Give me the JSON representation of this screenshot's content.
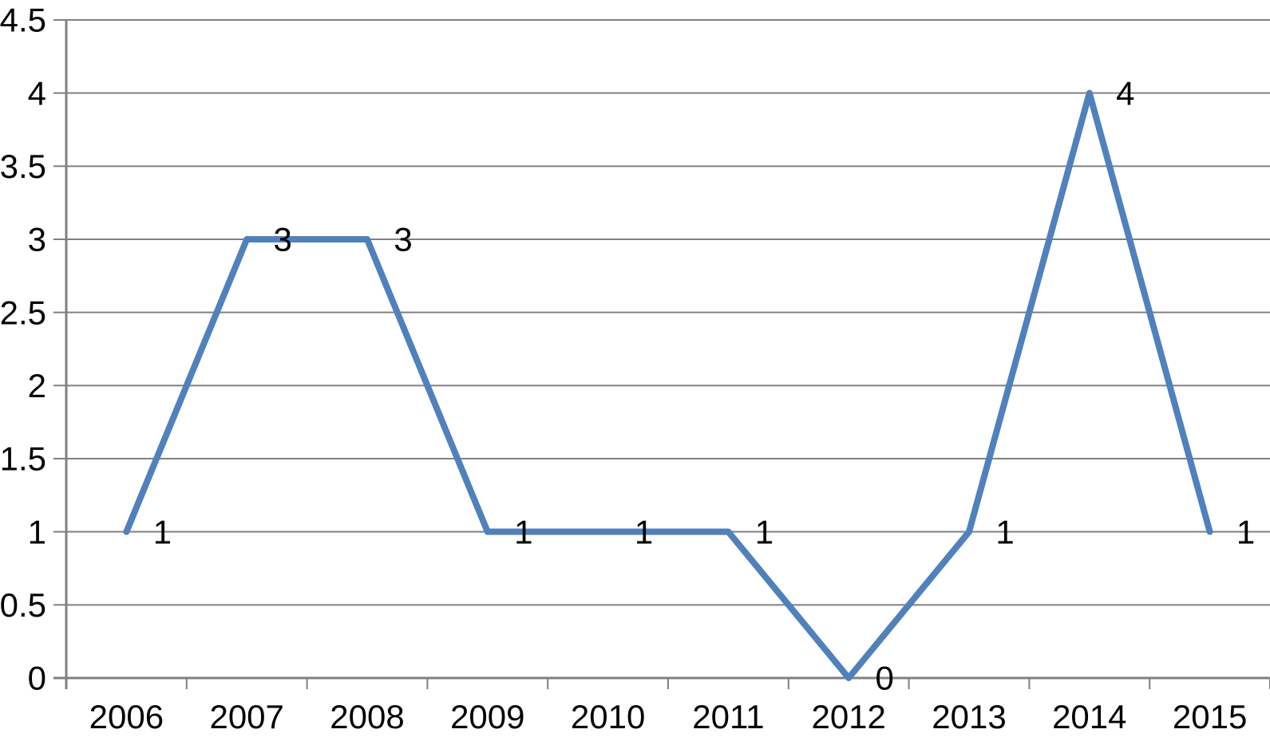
{
  "chart_data": {
    "type": "line",
    "title": "",
    "xlabel": "",
    "ylabel": "",
    "categories": [
      "2006",
      "2007",
      "2008",
      "2009",
      "2010",
      "2011",
      "2012",
      "2013",
      "2014",
      "2015"
    ],
    "values": [
      1,
      3,
      3,
      1,
      1,
      1,
      0,
      1,
      4,
      1
    ],
    "data_labels": [
      "1",
      "3",
      "3",
      "1",
      "1",
      "1",
      "0",
      "1",
      "4",
      "1"
    ],
    "y_ticks": [
      "0",
      "0.5",
      "1",
      "1.5",
      "2",
      "2.5",
      "3",
      "3.5",
      "4",
      "4.5"
    ],
    "y_tick_step": 0.5,
    "ylim": [
      0,
      4.5
    ],
    "grid": true,
    "legend": "none",
    "colors": {
      "line": "#4F81BD",
      "grid": "#808080",
      "axis": "#808080",
      "text": "#000000",
      "background": "#FFFFFF"
    }
  }
}
